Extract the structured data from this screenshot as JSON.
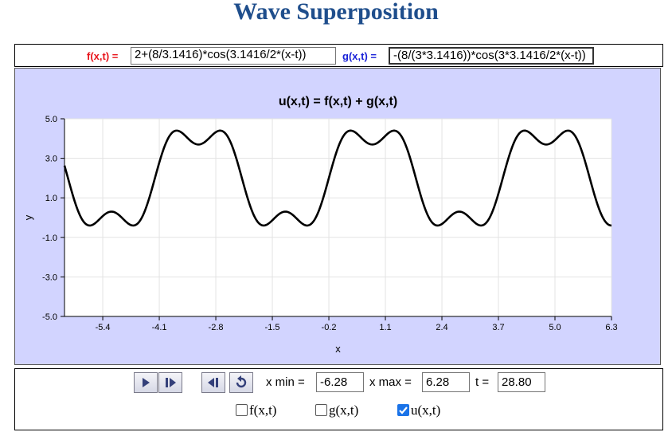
{
  "page": {
    "title": "Wave Superposition"
  },
  "formulas": {
    "f_label": "f(x,t) =",
    "f_value": "2+(8/3.1416)*cos(3.1416/2*(x-t))",
    "g_label": "g(x,t) =",
    "g_value": "-(8/(3*3.1416))*cos(3*3.1416/2*(x-t))"
  },
  "colors": {
    "f_label": "#e8141a",
    "g_label": "#1a22d8",
    "title": "#1f4e8c",
    "plot_bg": "#d2d4ff"
  },
  "chart_data": {
    "type": "line",
    "title": "u(x,t) = f(x,t) + g(x,t)",
    "xlabel": "x",
    "ylabel": "y",
    "xlim": [
      -6.28,
      6.3
    ],
    "ylim": [
      -5.0,
      5.0
    ],
    "x_ticks": [
      "-5.4",
      "-4.1",
      "-2.8",
      "-1.5",
      "-0.2",
      "1.1",
      "2.4",
      "3.7",
      "5.0",
      "6.3"
    ],
    "y_ticks": [
      "5.0",
      "3.0",
      "1.0",
      "-1.0",
      "-3.0",
      "-5.0"
    ],
    "grid": true,
    "series": [
      {
        "formula": "2+(8/pi)*cos(pi/2*(x-t)) - (8/(3*pi))*cos(3*pi/2*(x-t))",
        "t": 28.8,
        "color": "#000000"
      }
    ]
  },
  "controls": {
    "buttons": [
      {
        "name": "play-button",
        "icon": "play-icon"
      },
      {
        "name": "step-forward-button",
        "icon": "step-forward-icon"
      },
      {
        "name": "step-back-button",
        "icon": "step-back-icon"
      },
      {
        "name": "reset-button",
        "icon": "reset-icon"
      }
    ],
    "xmin_label": "x min =",
    "xmin_value": "-6.28",
    "xmax_label": "x max =",
    "xmax_value": "6.28",
    "t_label": "t =",
    "t_value": "28.80",
    "checkboxes": [
      {
        "label": "f(x,t)",
        "checked": false
      },
      {
        "label": "g(x,t)",
        "checked": false
      },
      {
        "label": "u(x,t)",
        "checked": true
      }
    ]
  }
}
